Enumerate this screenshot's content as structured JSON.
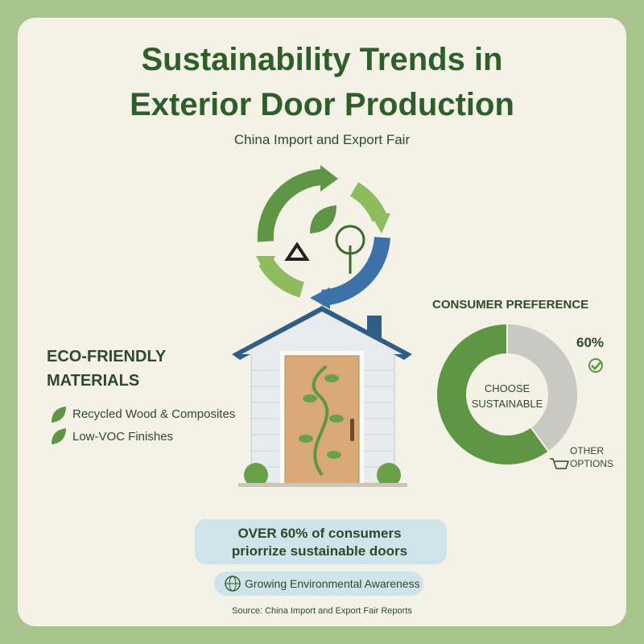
{
  "header": {
    "title_line1": "Sustainability Trends in",
    "title_line2": "Exterior Door Production",
    "subtitle": "China Import and Export Fair"
  },
  "materials": {
    "heading": "ECO-FRIENDLY MATERIALS",
    "items": [
      "Recycled Wood & Composites",
      "Low-VOC Finishes"
    ]
  },
  "preference": {
    "heading": "CONSUMER PREFERENCE",
    "segments": [
      {
        "label": "CHOOSE SUSTAINABLE",
        "value": 60,
        "value_label": "60%",
        "color": "#5f9645"
      },
      {
        "label": "OTHER OPTIONS",
        "value": 40,
        "color": "#c9c9c4"
      }
    ]
  },
  "callout": "OVER 60% of consumers priorrize sustainable doors",
  "badge": "Growing Environmental Awareness",
  "source": "Source: China Import and Export Fair Reports"
}
